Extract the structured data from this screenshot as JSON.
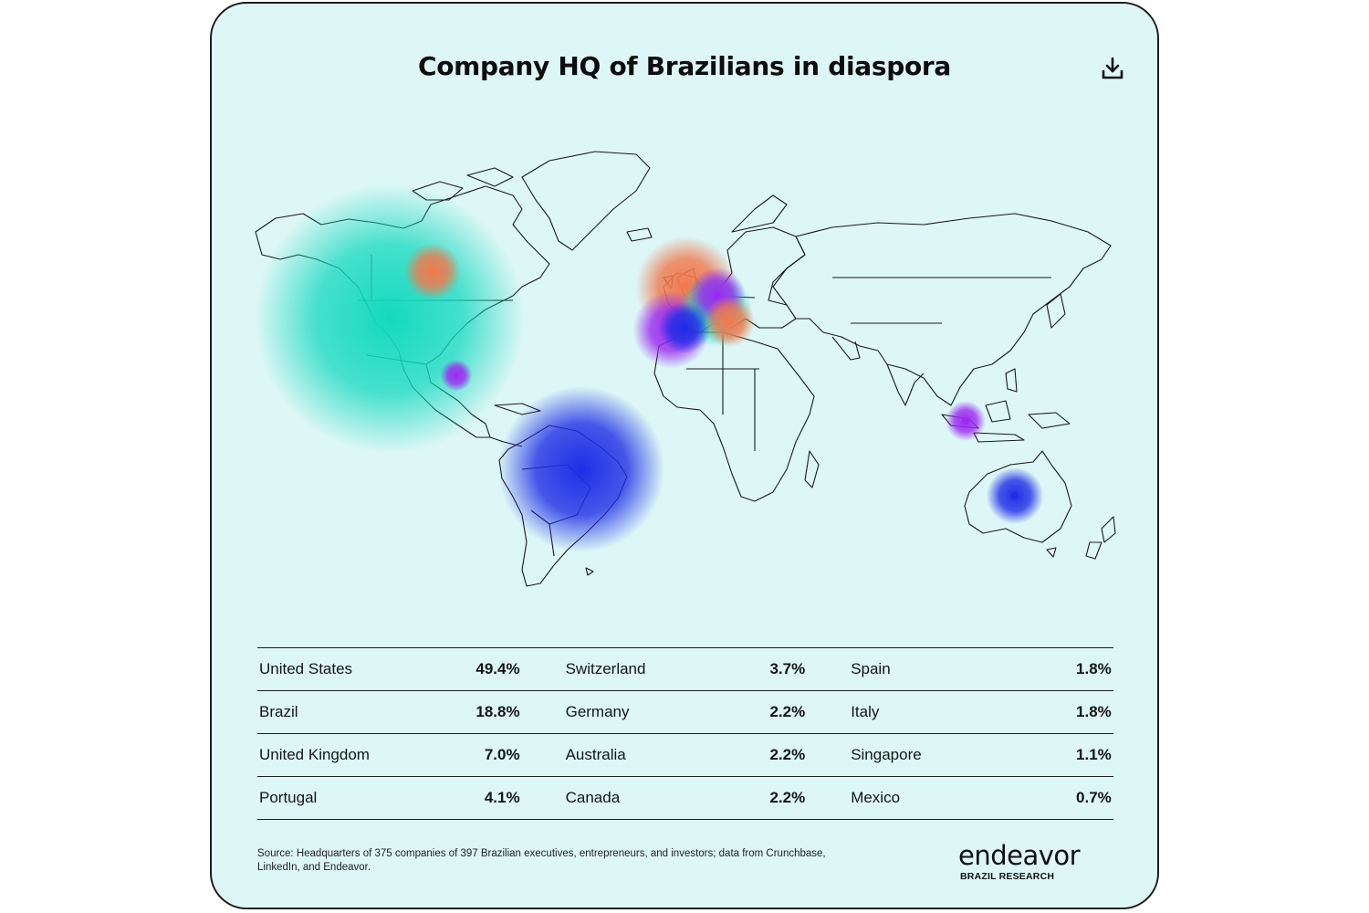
{
  "title": "Company HQ of Brazilians in diaspora",
  "icons": {
    "download": "download-icon"
  },
  "colors": {
    "background": "#dcf7f6",
    "green": "#14d9bf",
    "blue": "#1f2ee6",
    "orange": "#f07a4e",
    "purple": "#9b2bf0"
  },
  "map": {
    "bubbles": [
      {
        "country": "United States",
        "share": 49.4,
        "color": "green"
      },
      {
        "country": "Brazil",
        "share": 18.8,
        "color": "blue"
      },
      {
        "country": "United Kingdom",
        "share": 7.0,
        "color": "orange"
      },
      {
        "country": "Portugal",
        "share": 4.1,
        "color": "purple"
      },
      {
        "country": "Switzerland",
        "share": 3.7,
        "color": "green"
      },
      {
        "country": "Germany",
        "share": 2.2,
        "color": "purple"
      },
      {
        "country": "Australia",
        "share": 2.2,
        "color": "blue"
      },
      {
        "country": "Canada",
        "share": 2.2,
        "color": "orange"
      },
      {
        "country": "Spain",
        "share": 1.8,
        "color": "blue"
      },
      {
        "country": "Italy",
        "share": 1.8,
        "color": "orange"
      },
      {
        "country": "Singapore",
        "share": 1.1,
        "color": "purple"
      },
      {
        "country": "Mexico",
        "share": 0.7,
        "color": "purple"
      }
    ]
  },
  "table": {
    "rows": [
      [
        {
          "country": "United States",
          "pct": "49.4%"
        },
        {
          "country": "Switzerland",
          "pct": "3.7%"
        },
        {
          "country": "Spain",
          "pct": "1.8%"
        }
      ],
      [
        {
          "country": "Brazil",
          "pct": "18.8%"
        },
        {
          "country": "Germany",
          "pct": "2.2%"
        },
        {
          "country": "Italy",
          "pct": "1.8%"
        }
      ],
      [
        {
          "country": "United Kingdom",
          "pct": "7.0%"
        },
        {
          "country": "Australia",
          "pct": "2.2%"
        },
        {
          "country": "Singapore",
          "pct": "1.1%"
        }
      ],
      [
        {
          "country": "Portugal",
          "pct": "4.1%"
        },
        {
          "country": "Canada",
          "pct": "2.2%"
        },
        {
          "country": "Mexico",
          "pct": "0.7%"
        }
      ]
    ]
  },
  "footer": {
    "source": "Source: Headquarters of 375 companies of 397 Brazilian executives, entrepreneurs, and investors; data from Crunchbase, LinkedIn, and Endeavor.",
    "logo_word": "endeavor",
    "logo_sub": "BRAZIL RESEARCH"
  }
}
